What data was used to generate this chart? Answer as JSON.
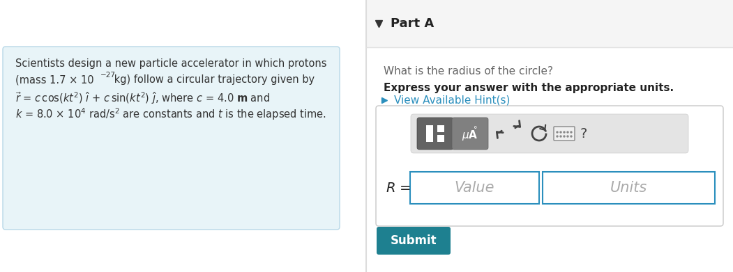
{
  "bg_color": "#ffffff",
  "left_panel_bg": "#e8f4f8",
  "left_panel_border": "#b8d8e8",
  "line1": "Scientists design a new particle accelerator in which protons",
  "line2_pre": "(mass 1.7 × 10",
  "line2_sup": "−27",
  "line2_post": " kg) follow a circular trajectory given by",
  "line4": "k = 8.0 × 10",
  "line4_sup": "4",
  "line4_post": " rad/s² are constants and t is the elapsed time.",
  "right_header_bg": "#f5f5f5",
  "right_header_border": "#e0e0e0",
  "right_body_bg": "#ffffff",
  "part_a_text": "Part A",
  "question_text": "What is the radius of the circle?",
  "bold_text": "Express your answer with the appropriate units.",
  "hint_text": "View Available Hint(s)",
  "hint_color": "#2b8fbd",
  "value_placeholder": "Value",
  "units_placeholder": "Units",
  "submit_text": "Submit",
  "submit_bg": "#1e8090",
  "submit_color": "#ffffff",
  "input_border": "#2b8fbd",
  "toolbar_bg": "#e4e4e4",
  "btn1_bg": "#636363",
  "btn2_bg": "#808080",
  "icon_color": "#444444",
  "container_border": "#c8c8c8",
  "text_color": "#333333",
  "question_color": "#666666"
}
